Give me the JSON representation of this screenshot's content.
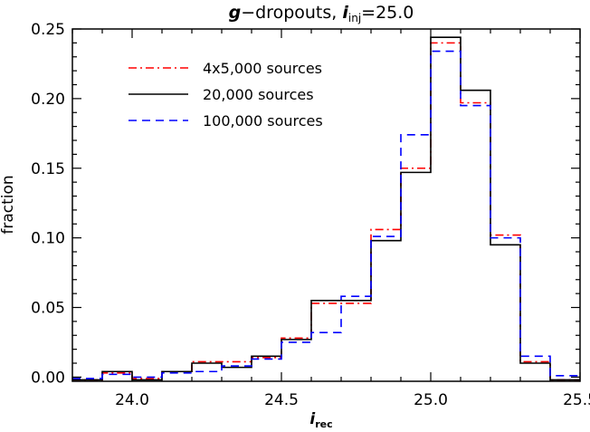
{
  "chart_data": {
    "type": "line",
    "title": {
      "prefix": "g",
      "middle": "−dropouts, ",
      "var": "i",
      "sub": "inj",
      "suffix": "=25.0"
    },
    "xlabel": {
      "var": "i",
      "sub": "rec"
    },
    "ylabel": "fraction",
    "xlim": [
      23.8,
      25.5
    ],
    "ylim": [
      -0.003,
      0.25
    ],
    "xticks": [
      {
        "value": 24.0,
        "label": "24.0"
      },
      {
        "value": 24.5,
        "label": "24.5"
      },
      {
        "value": 25.0,
        "label": "25.0"
      },
      {
        "value": 25.5,
        "label": "25.5"
      }
    ],
    "yticks": [
      {
        "value": 0.0,
        "label": "0.00"
      },
      {
        "value": 0.05,
        "label": "0.05"
      },
      {
        "value": 0.1,
        "label": "0.10"
      },
      {
        "value": 0.15,
        "label": "0.15"
      },
      {
        "value": 0.2,
        "label": "0.20"
      },
      {
        "value": 0.25,
        "label": "0.25"
      }
    ],
    "bin_edges": [
      23.8,
      23.9,
      24.0,
      24.1,
      24.2,
      24.3,
      24.4,
      24.5,
      24.6,
      24.7,
      24.8,
      24.9,
      25.0,
      25.1,
      25.2,
      25.3,
      25.4,
      25.5
    ],
    "legend_position": "top-left",
    "series": [
      {
        "name": "4x5,000 sources",
        "color": "#ff0000",
        "style": "dash-dot",
        "values": [
          -0.002,
          0.003,
          -0.001,
          0.004,
          0.011,
          0.011,
          0.014,
          0.028,
          0.053,
          0.053,
          0.106,
          0.15,
          0.24,
          0.197,
          0.102,
          0.011,
          -0.002
        ]
      },
      {
        "name": "20,000 sources",
        "color": "#000000",
        "style": "solid",
        "values": [
          -0.002,
          0.004,
          -0.002,
          0.004,
          0.01,
          0.007,
          0.015,
          0.027,
          0.055,
          0.055,
          0.098,
          0.147,
          0.244,
          0.206,
          0.095,
          0.01,
          -0.002
        ]
      },
      {
        "name": "100,000 sources",
        "color": "#0000ff",
        "style": "dashed",
        "values": [
          -0.001,
          0.002,
          0.0,
          0.003,
          0.004,
          0.008,
          0.013,
          0.025,
          0.032,
          0.058,
          0.101,
          0.174,
          0.234,
          0.195,
          0.1,
          0.015,
          0.001
        ]
      }
    ]
  }
}
